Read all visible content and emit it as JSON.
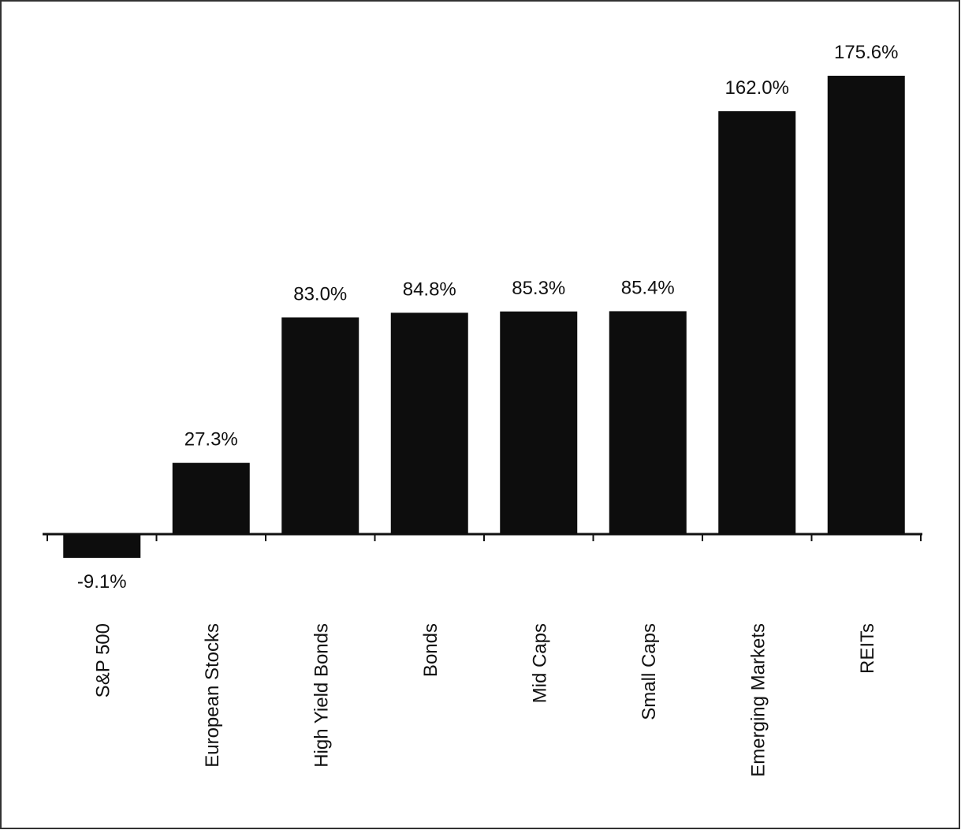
{
  "chart_data": {
    "type": "bar",
    "categories": [
      "S&P 500",
      "European Stocks",
      "High Yield Bonds",
      "Bonds",
      "Mid Caps",
      "Small Caps",
      "Emerging Markets",
      "REITs"
    ],
    "values": [
      -9.1,
      27.3,
      83.0,
      84.8,
      85.3,
      85.4,
      162.0,
      175.6
    ],
    "value_labels": [
      "-9.1%",
      "27.3%",
      "83.0%",
      "84.8%",
      "85.3%",
      "85.4%",
      "162.0%",
      "175.6%"
    ],
    "color": "#0d0d0d"
  }
}
